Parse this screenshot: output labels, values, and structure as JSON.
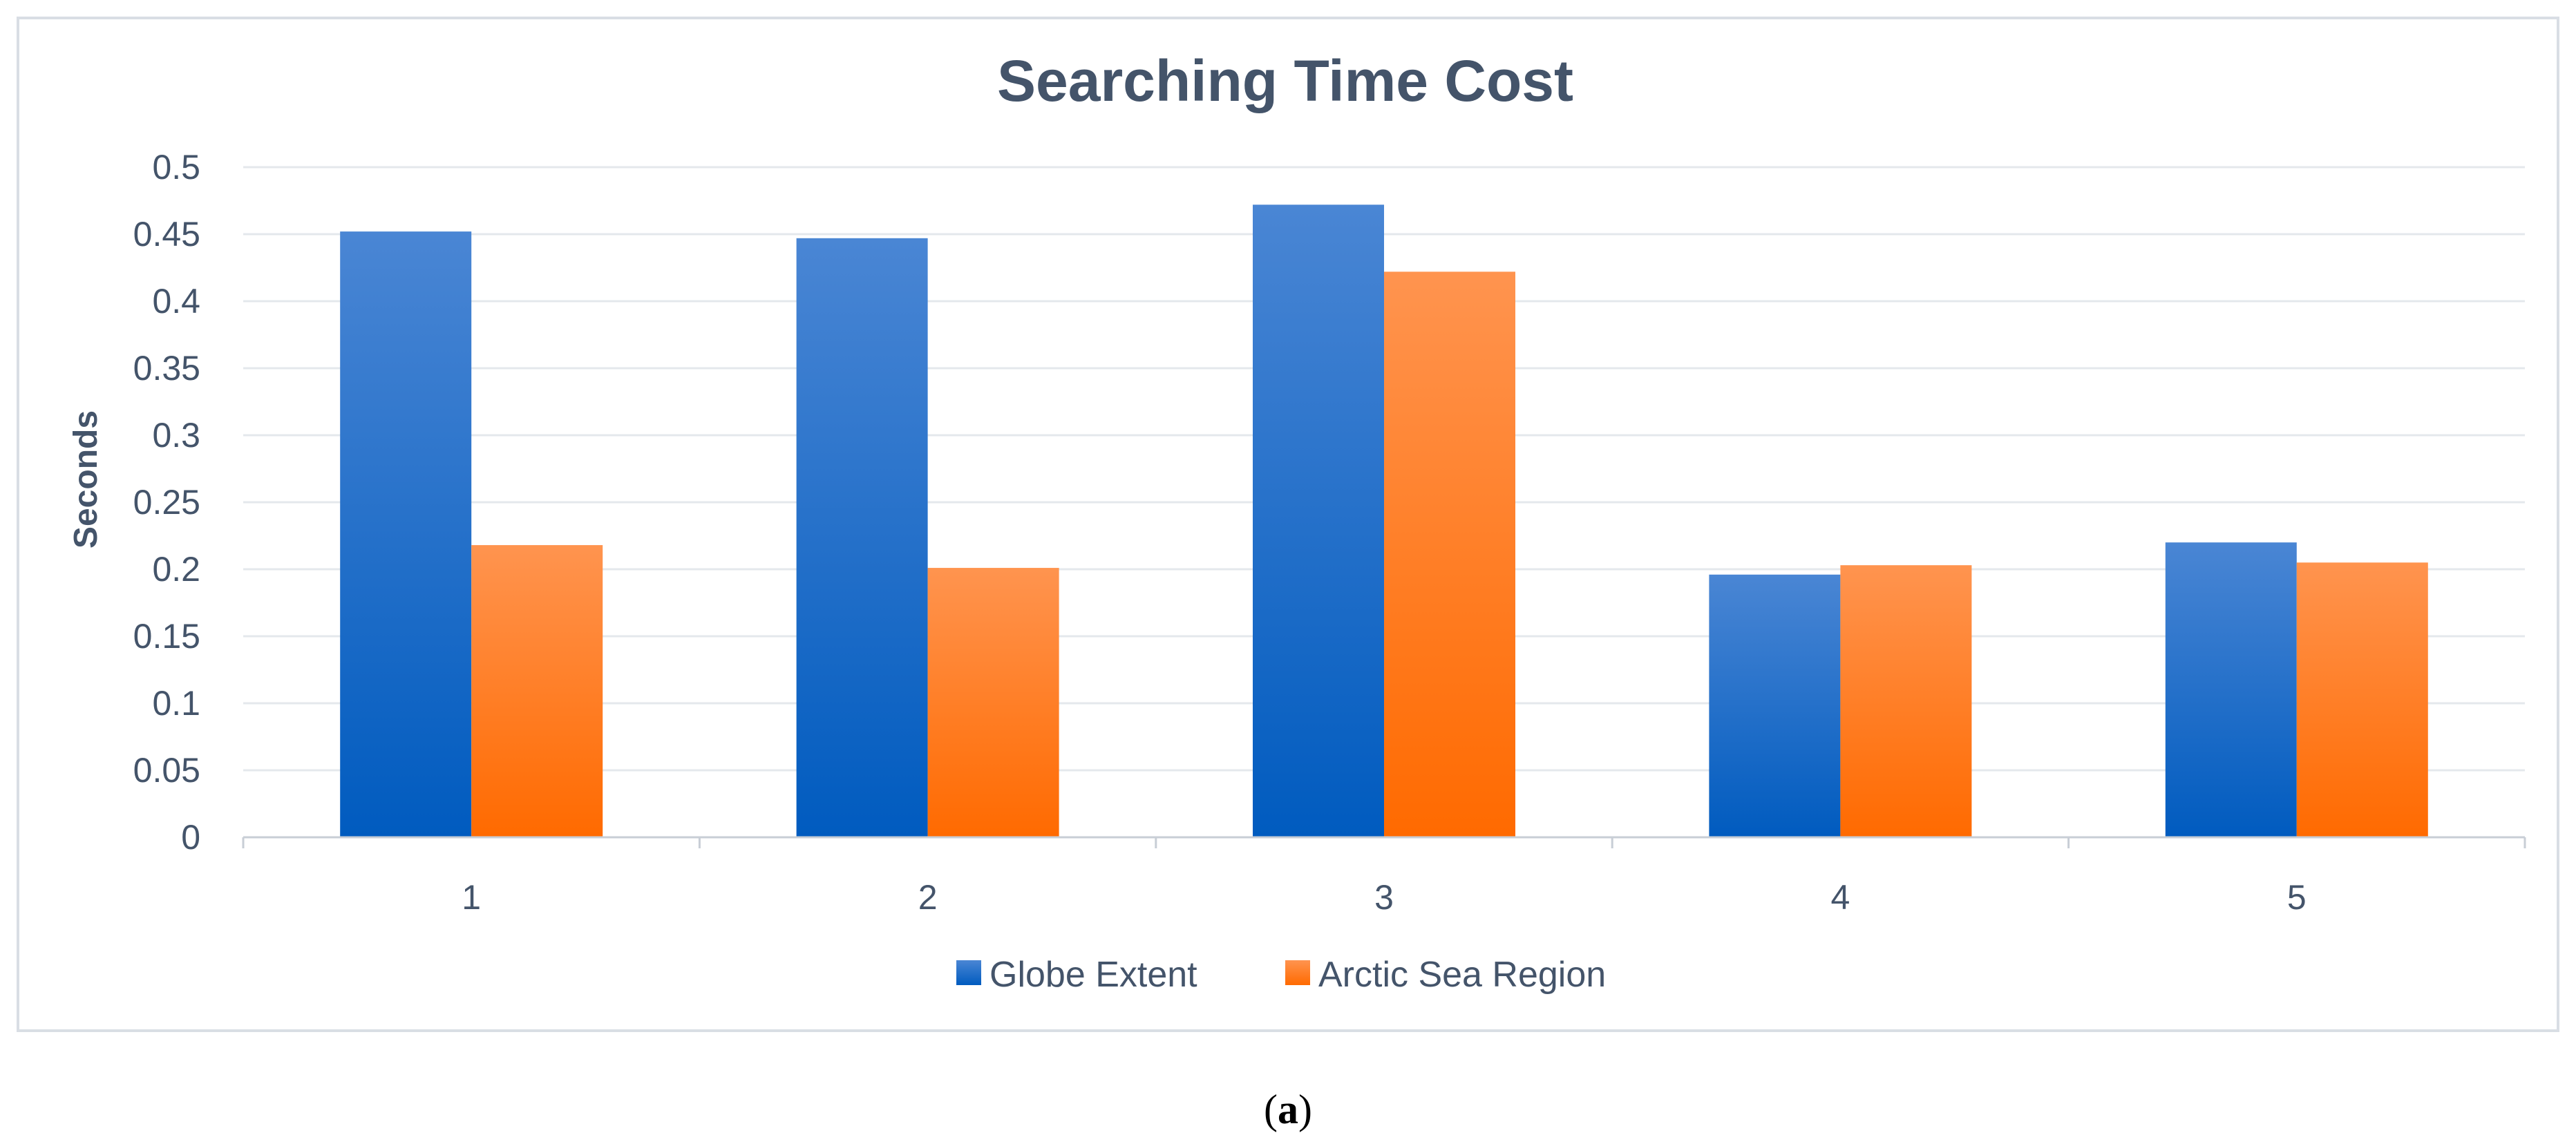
{
  "chart_data": {
    "type": "bar",
    "title": "Searching Time Cost",
    "xlabel": "",
    "ylabel": "Seconds",
    "categories": [
      "1",
      "2",
      "3",
      "4",
      "5"
    ],
    "ylim": [
      0,
      0.5
    ],
    "yticks": [
      "0",
      "0.05",
      "0.1",
      "0.15",
      "0.2",
      "0.25",
      "0.3",
      "0.35",
      "0.4",
      "0.45",
      "0.5"
    ],
    "series": [
      {
        "name": "Globe Extent",
        "values": [
          0.452,
          0.447,
          0.472,
          0.196,
          0.22
        ]
      },
      {
        "name": "Arctic Sea Region",
        "values": [
          0.218,
          0.201,
          0.422,
          0.203,
          0.205
        ]
      }
    ],
    "grid": true,
    "legend_position": "bottom"
  },
  "colors": {
    "series_0_top": "#4a86d4",
    "series_0_bottom": "#005bbf",
    "series_1_top": "#ff944f",
    "series_1_bottom": "#ff6a00",
    "gridline": "#e4e8ec",
    "frame": "#d9dee4",
    "text": "#44546a"
  },
  "caption": {
    "open": "(",
    "label": "a",
    "close": ")"
  }
}
